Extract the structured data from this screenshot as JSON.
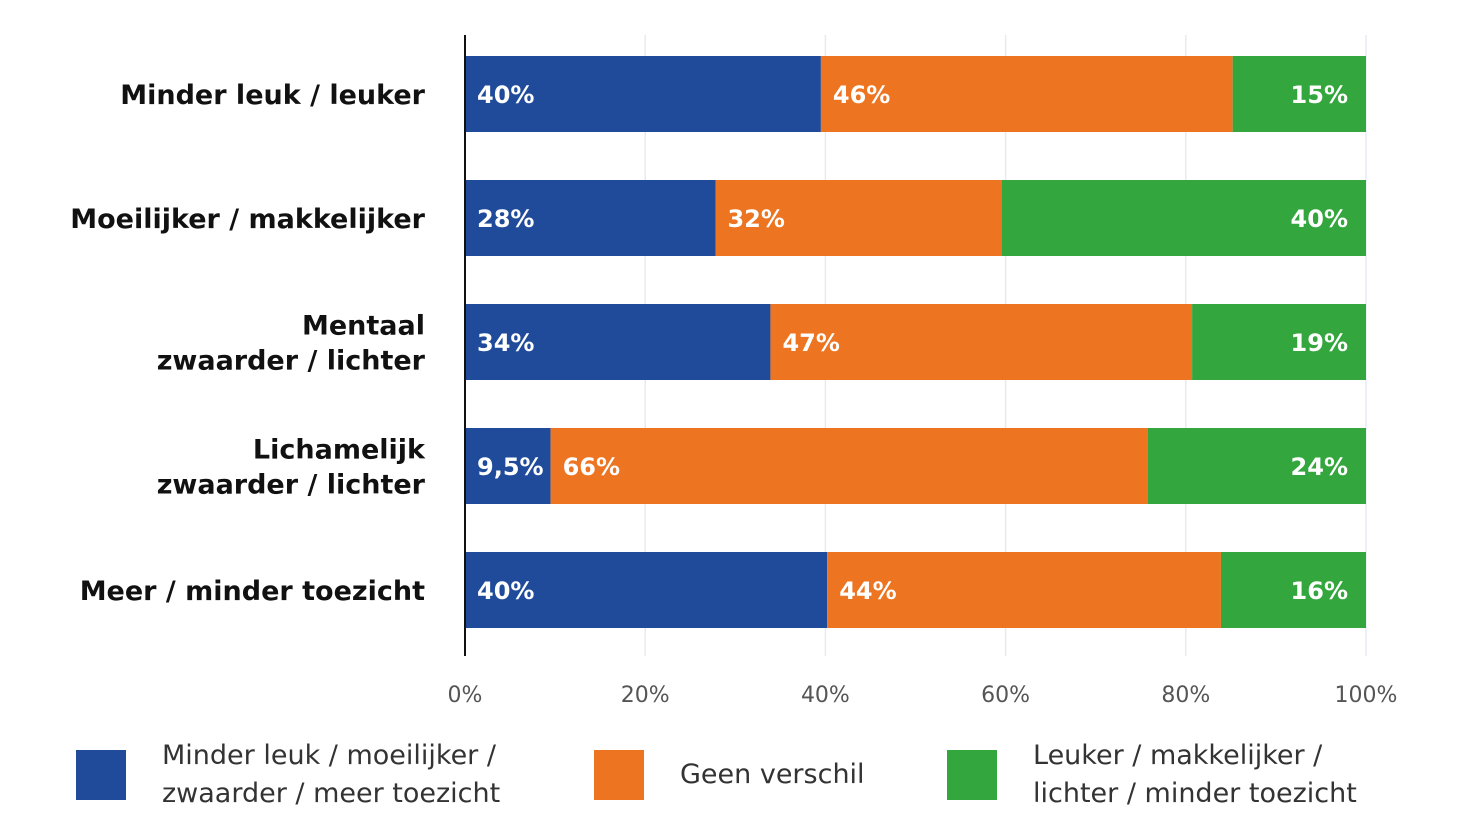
{
  "chart_data": {
    "type": "bar",
    "orientation": "horizontal",
    "stacked": true,
    "categories": [
      [
        "Minder leuk / leuker"
      ],
      [
        "Moeilijker / makkelijker"
      ],
      [
        "Mentaal",
        "zwaarder / lichter"
      ],
      [
        "Lichamelijk",
        "zwaarder / lichter"
      ],
      [
        "Meer / minder toezicht"
      ]
    ],
    "series": [
      {
        "name": [
          "Minder leuk / moeilijker /",
          "zwaarder / meer toezicht"
        ],
        "color": "#1f4b9a",
        "values": [
          39.5,
          27.8,
          33.9,
          9.5,
          40.2
        ],
        "labels": [
          "40%",
          "28%",
          "34%",
          "9,5%",
          "40%"
        ]
      },
      {
        "name": [
          "Geen verschil"
        ],
        "color": "#ed7420",
        "values": [
          45.7,
          31.8,
          46.8,
          66.3,
          43.7
        ],
        "labels": [
          "46%",
          "32%",
          "47%",
          "66%",
          "44%"
        ]
      },
      {
        "name": [
          "Leuker / makkelijker /",
          "lichter / minder toezicht"
        ],
        "color": "#33a63d",
        "values": [
          14.8,
          40.4,
          19.3,
          24.2,
          16.1
        ],
        "labels": [
          "15%",
          "40%",
          "19%",
          "24%",
          "16%"
        ]
      }
    ],
    "xlim": [
      0,
      100
    ],
    "xticks": [
      "0%",
      "20%",
      "40%",
      "60%",
      "80%",
      "100%"
    ],
    "grid": "vertical",
    "legend_position": "bottom"
  }
}
